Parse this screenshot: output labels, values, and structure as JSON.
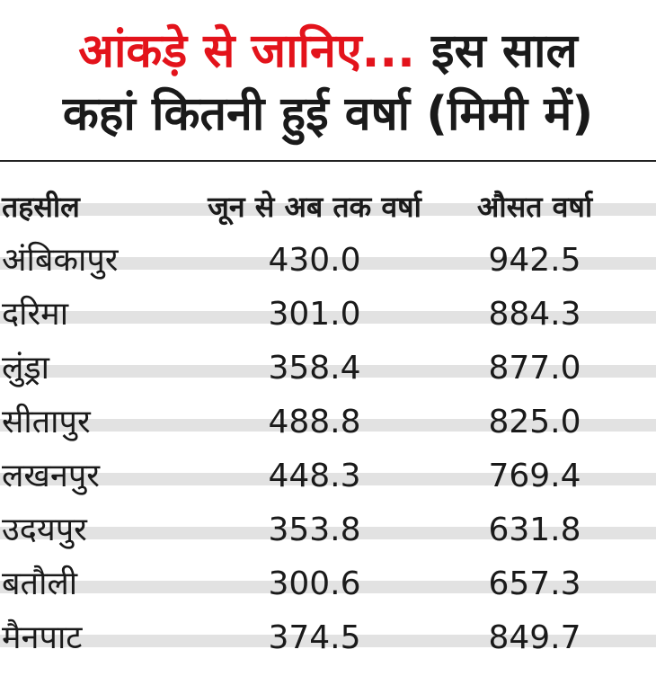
{
  "title": [
    "आंकड़े से जानिए...",
    "इस साल",
    "कहां कितनी हुई वर्षा (मिमी में)"
  ],
  "table": {
    "columns": [
      "तहसील",
      "जून से अब तक वर्षा",
      "औसत वर्षा"
    ],
    "rows": [
      [
        "अंबिकापुर",
        "430.0",
        "942.5"
      ],
      [
        "दरिमा",
        "301.0",
        "884.3"
      ],
      [
        "लुंड्रा",
        "358.4",
        "877.0"
      ],
      [
        "सीतापुर",
        "488.8",
        "825.0"
      ],
      [
        "लखनपुर",
        "448.3",
        "769.4"
      ],
      [
        "उदयपुर",
        "353.8",
        "631.8"
      ],
      [
        "बतौली",
        "300.6",
        "657.3"
      ],
      [
        "मैनपाट",
        "374.5",
        "849.7"
      ]
    ]
  }
}
